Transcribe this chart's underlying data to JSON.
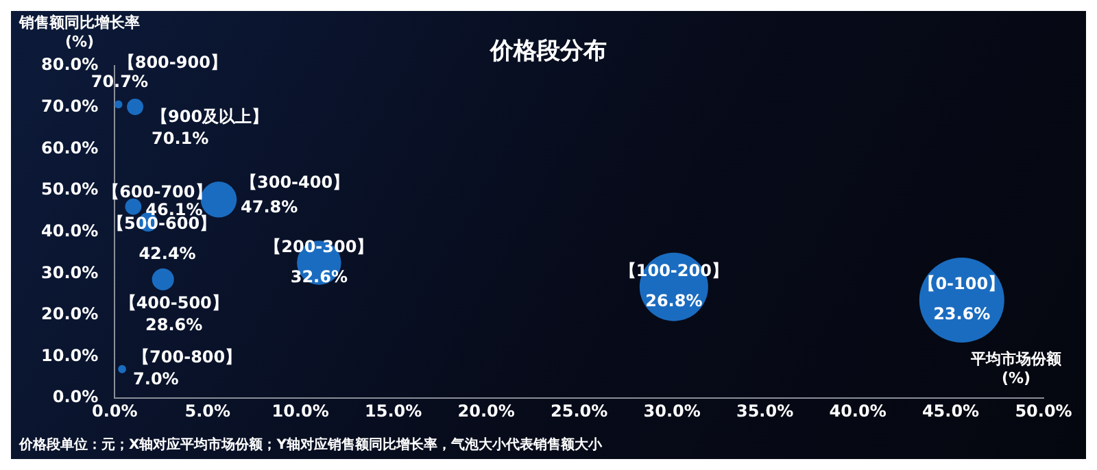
{
  "chart_data": {
    "type": "bubble",
    "title": "价格段分布",
    "xlabel": "平均市场份额\n(%)",
    "ylabel": "销售额同比增长率\n(%)",
    "annotations": [
      "价格段单位：元；X轴对应平均市场份额；Y轴对应销售额同比增长率，气泡大小代表销售额大小"
    ],
    "series": [
      {
        "name": "【0-100】",
        "color": "#1a6cc0",
        "x": [
          45.6
        ],
        "values": [
          23.6
        ],
        "sizes": [
          1
        ],
        "value_labels": [
          "23.6%"
        ]
      },
      {
        "name": "【100-200】",
        "color": "#1a6cc0",
        "x": [
          30.1
        ],
        "values": [
          26.8
        ],
        "sizes": [
          0.65
        ],
        "value_labels": [
          "26.8%"
        ]
      },
      {
        "name": "【200-300】",
        "color": "#1a6cc0",
        "x": [
          11.0
        ],
        "values": [
          32.6
        ],
        "sizes": [
          0.27
        ],
        "value_labels": [
          "32.6%"
        ]
      },
      {
        "name": "【300-400】",
        "color": "#1a6cc0",
        "x": [
          5.6
        ],
        "values": [
          47.8
        ],
        "sizes": [
          0.18
        ],
        "value_labels": [
          "47.8%"
        ]
      },
      {
        "name": "【400-500】",
        "color": "#1a6cc0",
        "x": [
          2.6
        ],
        "values": [
          28.6
        ],
        "sizes": [
          0.067
        ],
        "value_labels": [
          "28.6%"
        ]
      },
      {
        "name": "【500-600】",
        "color": "#1a6cc0",
        "x": [
          1.8
        ],
        "values": [
          42.4
        ],
        "sizes": [
          0.051
        ],
        "value_labels": [
          "42.4%"
        ]
      },
      {
        "name": "【600-700】",
        "color": "#1a6cc0",
        "x": [
          1.0
        ],
        "values": [
          46.1
        ],
        "sizes": [
          0.037
        ],
        "value_labels": [
          "46.1%"
        ]
      },
      {
        "name": "【900及以上】",
        "color": "#1a6cc0",
        "x": [
          1.1
        ],
        "values": [
          70.1
        ],
        "sizes": [
          0.037
        ],
        "value_labels": [
          "70.1%"
        ]
      },
      {
        "name": "【800-900】",
        "color": "#1a6cc0",
        "x": [
          0.2
        ],
        "values": [
          70.7
        ],
        "sizes": [
          0.009
        ],
        "value_labels": [
          "70.7%"
        ]
      },
      {
        "name": "【700-800】",
        "color": "#1a6cc0",
        "x": [
          0.4
        ],
        "values": [
          7.0
        ],
        "sizes": [
          0.009
        ],
        "value_labels": [
          "7.0%"
        ]
      }
    ],
    "xlim": [
      0,
      50
    ],
    "ylim": [
      0,
      80
    ],
    "xticks": [
      {
        "value": 0,
        "label": "0.0%"
      },
      {
        "value": 5,
        "label": "5.0%"
      },
      {
        "value": 10,
        "label": "10.0%"
      },
      {
        "value": 15,
        "label": "15.0%"
      },
      {
        "value": 20,
        "label": "20.0%"
      },
      {
        "value": 25,
        "label": "25.0%"
      },
      {
        "value": 30,
        "label": "30.0%"
      },
      {
        "value": 35,
        "label": "35.0%"
      },
      {
        "value": 40,
        "label": "40.0%"
      },
      {
        "value": 45,
        "label": "45.0%"
      },
      {
        "value": 50,
        "label": "50.0%"
      }
    ],
    "yticks": [
      {
        "value": 0,
        "label": "0.0%"
      },
      {
        "value": 10,
        "label": "10.0%"
      },
      {
        "value": 20,
        "label": "20.0%"
      },
      {
        "value": 30,
        "label": "30.0%"
      },
      {
        "value": 40,
        "label": "40.0%"
      },
      {
        "value": 50,
        "label": "50.0%"
      },
      {
        "value": 60,
        "label": "60.0%"
      },
      {
        "value": 70,
        "label": "70.0%"
      },
      {
        "value": 80,
        "label": "80.0%"
      }
    ],
    "grid": false,
    "legend": false,
    "data_labels": false
  }
}
